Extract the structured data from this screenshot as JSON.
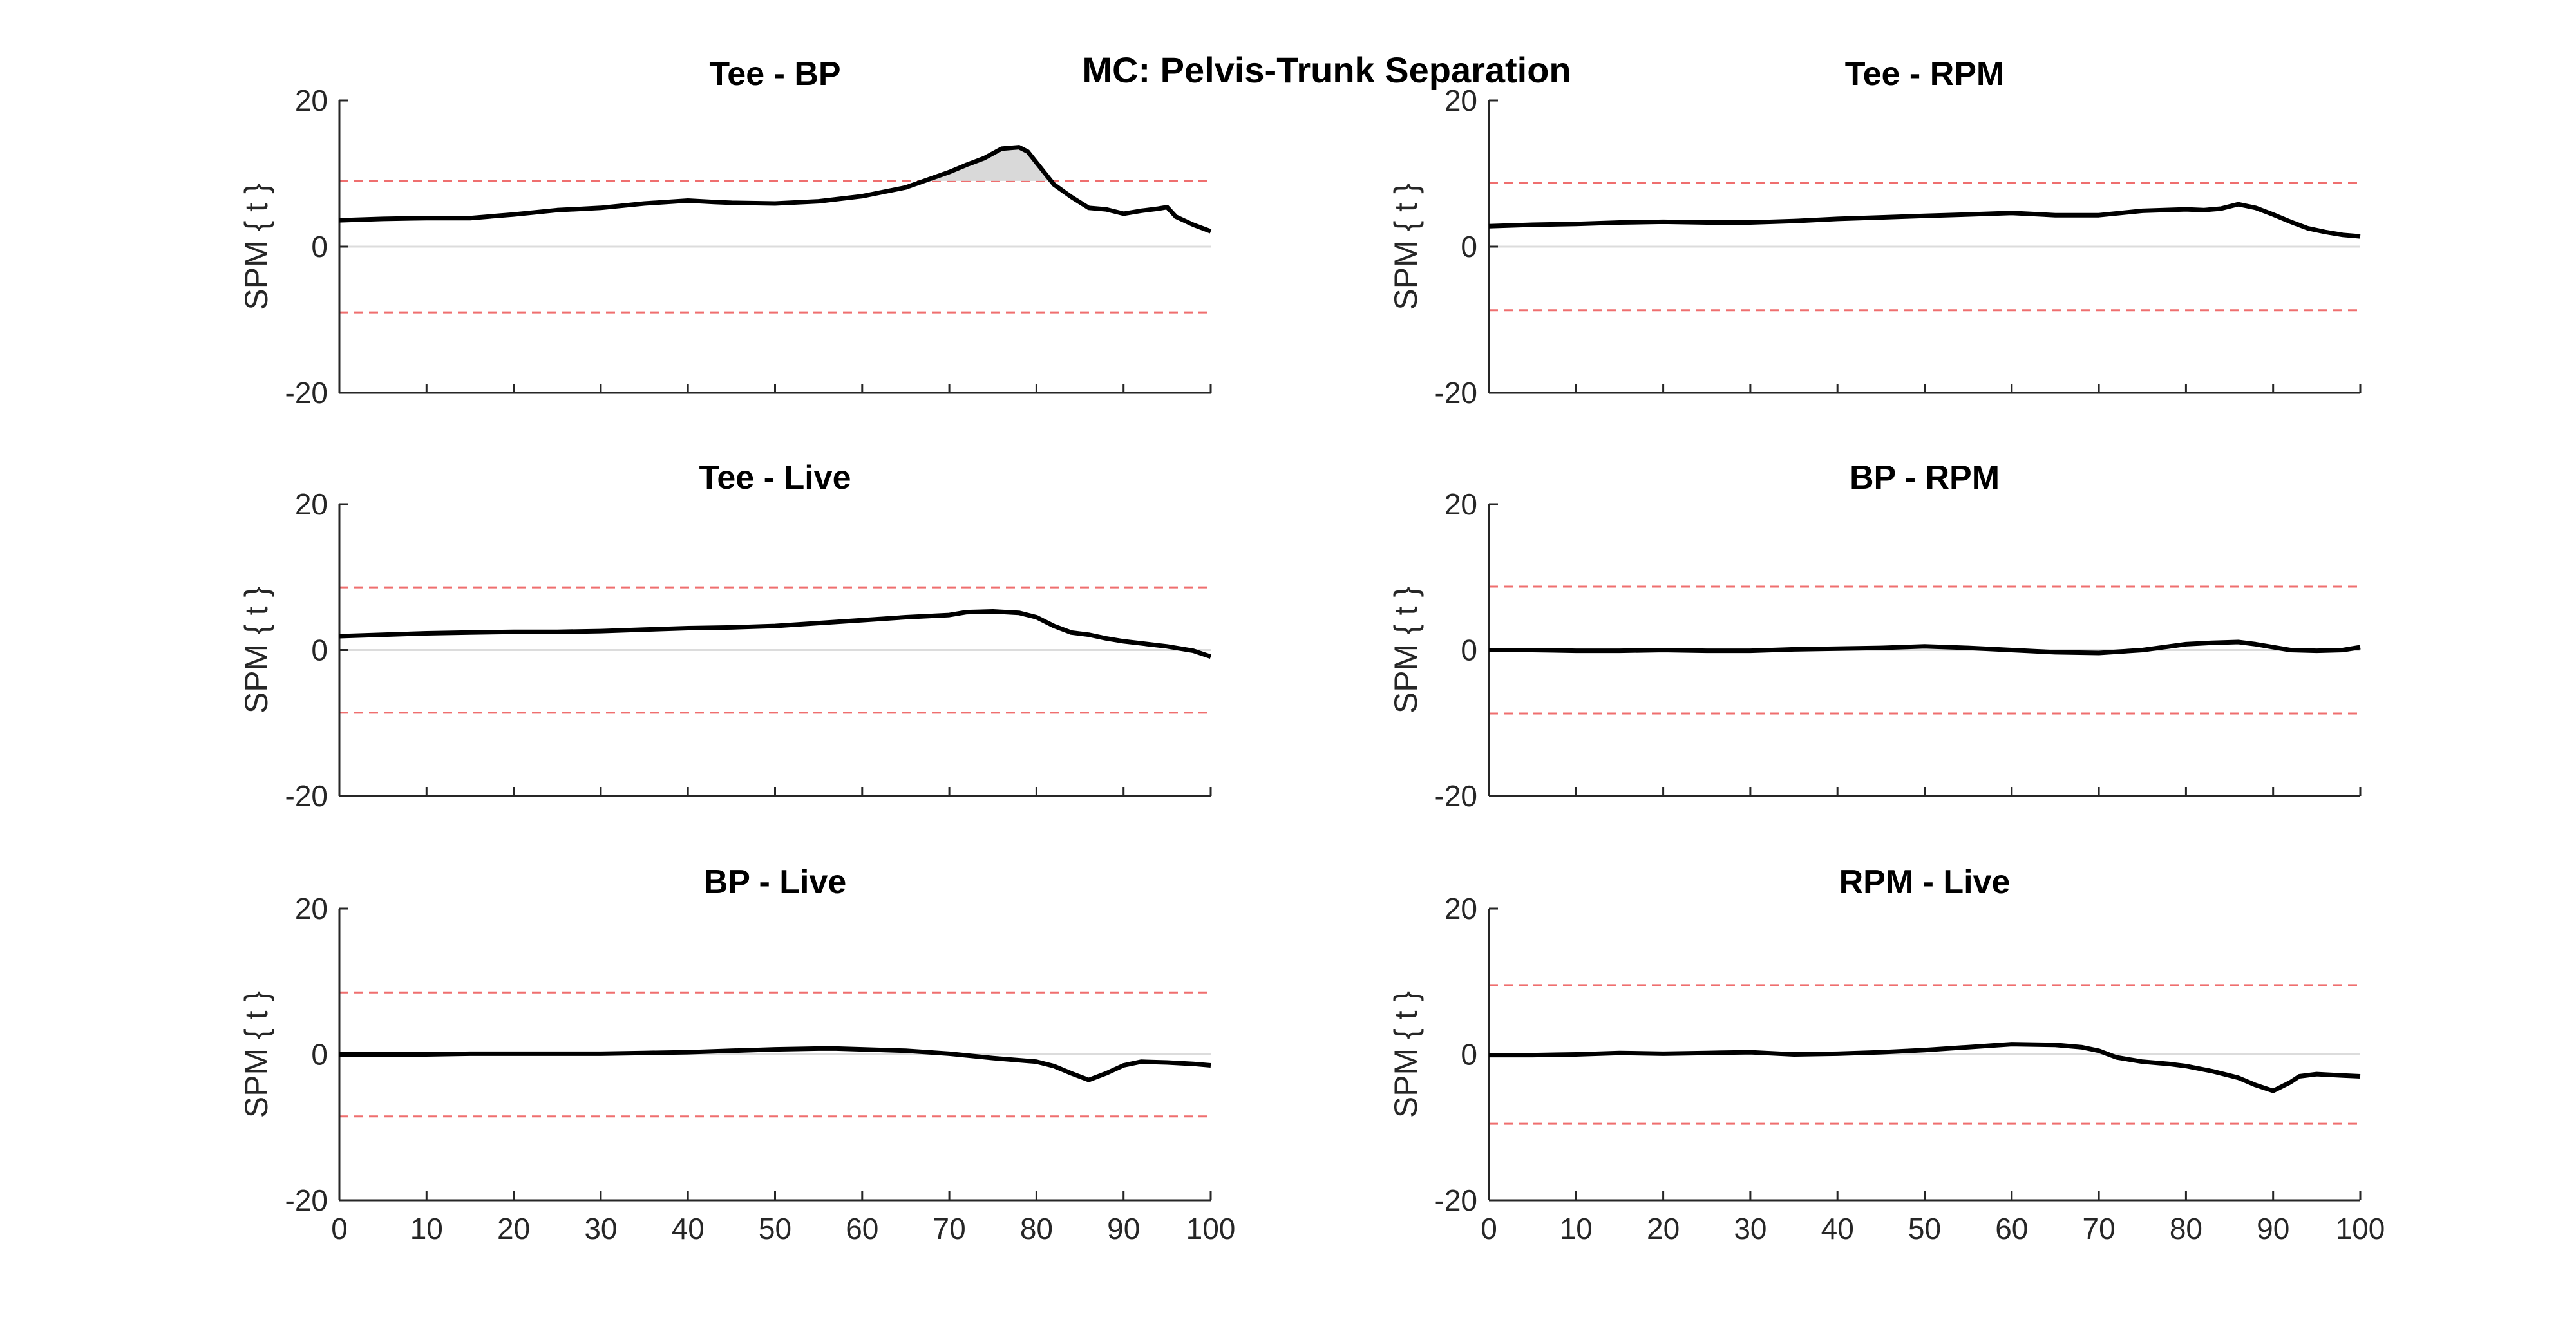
{
  "figure_title": "MC: Pelvis-Trunk Separation",
  "chart_data": [
    {
      "type": "line",
      "title": "Tee - BP",
      "ylabel": "SPM { t }",
      "xlim": [
        0,
        100
      ],
      "ylim": [
        -20,
        20
      ],
      "xticks": [
        "0",
        "10",
        "20",
        "30",
        "40",
        "50",
        "60",
        "70",
        "80",
        "90",
        "100"
      ],
      "yticks": [
        "20",
        "0",
        "-20"
      ],
      "show_xtick_labels": false,
      "threshold": 9.0,
      "suprathreshold_shaded": true,
      "series": [
        {
          "x": [
            0,
            5,
            10,
            15,
            20,
            25,
            30,
            35,
            40,
            43,
            45,
            50,
            55,
            60,
            65,
            70,
            72,
            74,
            76,
            78,
            79,
            80,
            82,
            84,
            86,
            88,
            90,
            92,
            94,
            95,
            96,
            98,
            100
          ],
          "y": [
            3.6,
            3.8,
            3.9,
            3.9,
            4.4,
            5.0,
            5.3,
            5.9,
            6.3,
            6.1,
            6.0,
            5.9,
            6.2,
            6.9,
            8.1,
            10.2,
            11.2,
            12.1,
            13.4,
            13.6,
            13.0,
            11.5,
            8.5,
            6.8,
            5.3,
            5.1,
            4.5,
            4.9,
            5.2,
            5.4,
            4.1,
            3.0,
            2.1
          ]
        }
      ]
    },
    {
      "type": "line",
      "title": "Tee - RPM",
      "ylabel": "SPM { t }",
      "xlim": [
        0,
        100
      ],
      "ylim": [
        -20,
        20
      ],
      "xticks": [
        "0",
        "10",
        "20",
        "30",
        "40",
        "50",
        "60",
        "70",
        "80",
        "90",
        "100"
      ],
      "yticks": [
        "20",
        "0",
        "-20"
      ],
      "show_xtick_labels": false,
      "threshold": 8.7,
      "suprathreshold_shaded": false,
      "series": [
        {
          "x": [
            0,
            5,
            10,
            15,
            20,
            25,
            30,
            35,
            40,
            45,
            50,
            55,
            60,
            65,
            70,
            75,
            80,
            82,
            84,
            86,
            88,
            90,
            92,
            94,
            96,
            98,
            100
          ],
          "y": [
            2.8,
            3.0,
            3.1,
            3.3,
            3.4,
            3.3,
            3.3,
            3.5,
            3.8,
            4.0,
            4.2,
            4.4,
            4.6,
            4.3,
            4.3,
            4.9,
            5.1,
            5.0,
            5.2,
            5.8,
            5.3,
            4.4,
            3.4,
            2.5,
            2.0,
            1.6,
            1.4
          ]
        }
      ]
    },
    {
      "type": "line",
      "title": "Tee - Live",
      "ylabel": "SPM { t }",
      "xlim": [
        0,
        100
      ],
      "ylim": [
        -20,
        20
      ],
      "xticks": [
        "0",
        "10",
        "20",
        "30",
        "40",
        "50",
        "60",
        "70",
        "80",
        "90",
        "100"
      ],
      "yticks": [
        "20",
        "0",
        "-20"
      ],
      "show_xtick_labels": false,
      "threshold": 8.6,
      "suprathreshold_shaded": false,
      "series": [
        {
          "x": [
            0,
            5,
            10,
            15,
            20,
            25,
            30,
            35,
            40,
            45,
            50,
            55,
            60,
            65,
            70,
            72,
            75,
            78,
            80,
            82,
            84,
            86,
            88,
            90,
            95,
            98,
            100
          ],
          "y": [
            1.9,
            2.1,
            2.3,
            2.4,
            2.5,
            2.5,
            2.6,
            2.8,
            3.0,
            3.1,
            3.3,
            3.7,
            4.1,
            4.5,
            4.8,
            5.2,
            5.3,
            5.1,
            4.5,
            3.3,
            2.4,
            2.1,
            1.6,
            1.2,
            0.5,
            -0.1,
            -0.9
          ]
        }
      ]
    },
    {
      "type": "line",
      "title": "BP - RPM",
      "ylabel": "SPM { t }",
      "xlim": [
        0,
        100
      ],
      "ylim": [
        -20,
        20
      ],
      "xticks": [
        "0",
        "10",
        "20",
        "30",
        "40",
        "50",
        "60",
        "70",
        "80",
        "90",
        "100"
      ],
      "yticks": [
        "20",
        "0",
        "-20"
      ],
      "show_xtick_labels": false,
      "threshold": 8.7,
      "suprathreshold_shaded": false,
      "series": [
        {
          "x": [
            0,
            5,
            10,
            15,
            20,
            25,
            30,
            35,
            40,
            45,
            50,
            55,
            60,
            65,
            70,
            75,
            80,
            83,
            86,
            88,
            90,
            92,
            95,
            98,
            100
          ],
          "y": [
            0.0,
            0.0,
            -0.1,
            -0.1,
            0.0,
            -0.1,
            -0.1,
            0.1,
            0.2,
            0.3,
            0.5,
            0.3,
            0.0,
            -0.3,
            -0.4,
            0.0,
            0.8,
            1.0,
            1.1,
            0.8,
            0.4,
            0.0,
            -0.1,
            0.0,
            0.4
          ]
        }
      ]
    },
    {
      "type": "line",
      "title": "BP - Live",
      "ylabel": "SPM { t }",
      "xlim": [
        0,
        100
      ],
      "ylim": [
        -20,
        20
      ],
      "xticks": [
        "0",
        "10",
        "20",
        "30",
        "40",
        "50",
        "60",
        "70",
        "80",
        "90",
        "100"
      ],
      "yticks": [
        "20",
        "0",
        "-20"
      ],
      "show_xtick_labels": true,
      "threshold": 8.5,
      "suprathreshold_shaded": false,
      "series": [
        {
          "x": [
            0,
            5,
            10,
            15,
            20,
            25,
            30,
            35,
            40,
            45,
            50,
            55,
            57,
            60,
            65,
            70,
            75,
            80,
            82,
            84,
            86,
            88,
            90,
            92,
            95,
            98,
            100
          ],
          "y": [
            0.0,
            0.0,
            0.0,
            0.1,
            0.1,
            0.1,
            0.1,
            0.2,
            0.3,
            0.5,
            0.7,
            0.8,
            0.8,
            0.7,
            0.5,
            0.1,
            -0.5,
            -1.0,
            -1.6,
            -2.6,
            -3.5,
            -2.6,
            -1.5,
            -1.0,
            -1.1,
            -1.3,
            -1.5
          ]
        }
      ]
    },
    {
      "type": "line",
      "title": "RPM - Live",
      "ylabel": "SPM { t }",
      "xlim": [
        0,
        100
      ],
      "ylim": [
        -20,
        20
      ],
      "xticks": [
        "0",
        "10",
        "20",
        "30",
        "40",
        "50",
        "60",
        "70",
        "80",
        "90",
        "100"
      ],
      "yticks": [
        "20",
        "0",
        "-20"
      ],
      "show_xtick_labels": true,
      "threshold": 9.5,
      "suprathreshold_shaded": false,
      "series": [
        {
          "x": [
            0,
            5,
            10,
            15,
            20,
            25,
            30,
            35,
            40,
            45,
            50,
            55,
            60,
            65,
            68,
            70,
            72,
            75,
            78,
            80,
            83,
            86,
            88,
            90,
            92,
            93,
            95,
            98,
            100
          ],
          "y": [
            -0.1,
            -0.1,
            0.0,
            0.2,
            0.1,
            0.2,
            0.3,
            0.0,
            0.1,
            0.3,
            0.6,
            1.0,
            1.4,
            1.3,
            1.0,
            0.5,
            -0.4,
            -1.0,
            -1.3,
            -1.6,
            -2.3,
            -3.2,
            -4.2,
            -5.0,
            -3.8,
            -3.0,
            -2.7,
            -2.9,
            -3.0
          ]
        }
      ]
    }
  ]
}
